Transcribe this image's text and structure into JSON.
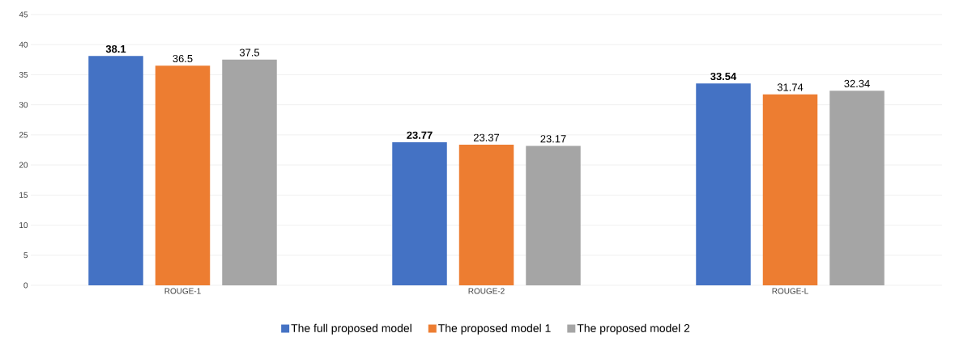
{
  "chart_data": {
    "type": "bar",
    "categories": [
      "ROUGE-1",
      "ROUGE-2",
      "ROUGE-L"
    ],
    "series": [
      {
        "name": "The full proposed model",
        "color": "#4472c4",
        "values": [
          38.1,
          23.77,
          33.54
        ]
      },
      {
        "name": "The proposed model 1",
        "color": "#ed7d31",
        "values": [
          36.5,
          23.37,
          31.74
        ]
      },
      {
        "name": "The proposed model 2",
        "color": "#a5a5a5",
        "values": [
          37.5,
          23.17,
          32.34
        ]
      }
    ],
    "ylim": [
      0,
      45
    ],
    "yticks": [
      0,
      5,
      10,
      15,
      20,
      25,
      30,
      35,
      40,
      45
    ],
    "grid": "y",
    "legend": "bottom",
    "data_labels": true
  }
}
